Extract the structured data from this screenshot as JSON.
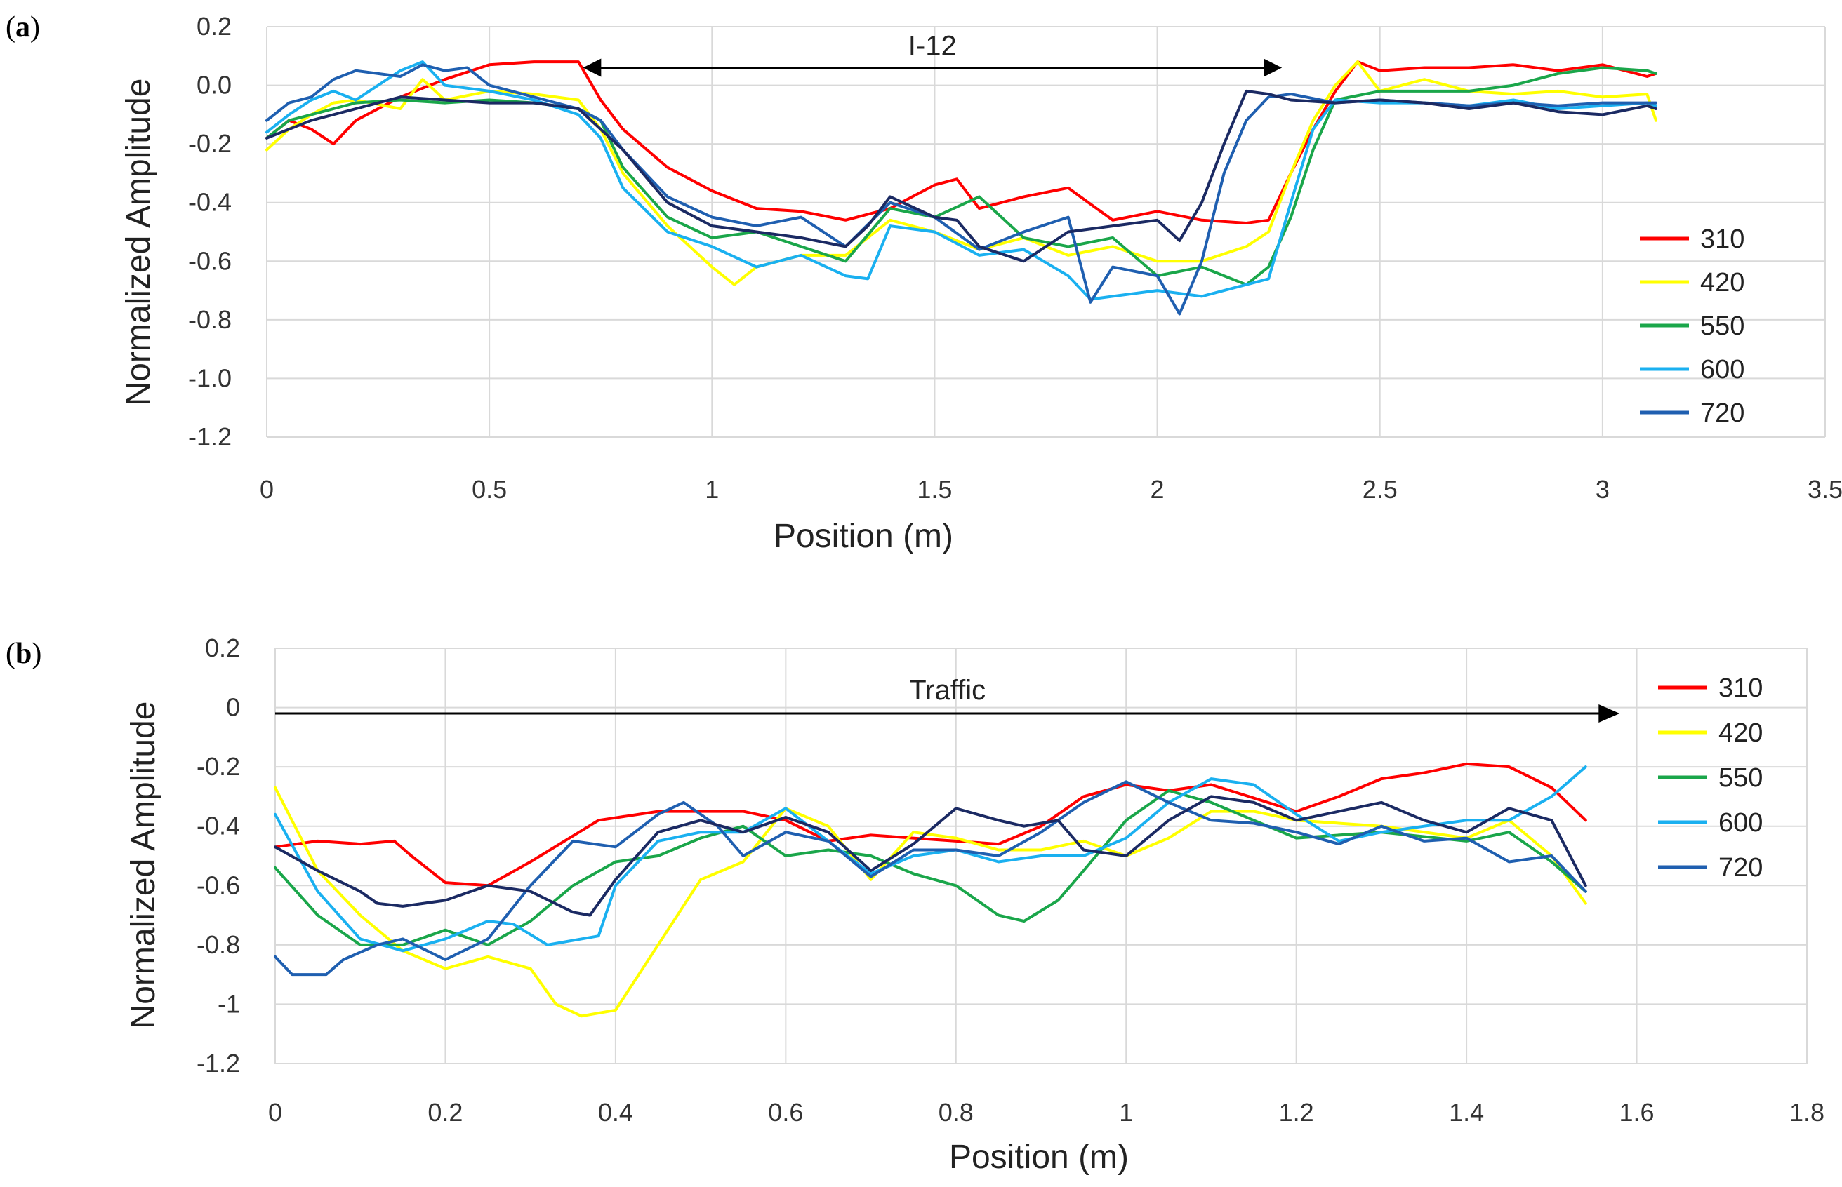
{
  "chart_data": [
    {
      "panel": "a",
      "type": "line",
      "xlabel": "Position (m)",
      "ylabel": "Normalized Amplitude",
      "xlim": [
        0,
        3.5
      ],
      "ylim": [
        -1.2,
        0.2
      ],
      "xticks": [
        0,
        0.5,
        1,
        1.5,
        2,
        2.5,
        3,
        3.5
      ],
      "xtick_labels": [
        "0",
        "0.5",
        "1",
        "1.5",
        "2",
        "2.5",
        "3",
        "3.5"
      ],
      "yticks": [
        0.2,
        0.0,
        -0.2,
        -0.4,
        -0.6,
        -0.8,
        -1.0,
        -1.2
      ],
      "ytick_labels": [
        "0.2",
        "0.0",
        "-0.2",
        "-0.4",
        "-0.6",
        "-0.8",
        "-1.0",
        "-1.2"
      ],
      "grid": true,
      "legend_position": "right",
      "annotation": {
        "text": "I-12",
        "from": 0.71,
        "to": 2.28,
        "y": 0.06,
        "style": "double-arrow"
      },
      "series": [
        {
          "name": "310",
          "color": "#ff0000",
          "x": [
            0,
            0.05,
            0.1,
            0.15,
            0.2,
            0.3,
            0.4,
            0.5,
            0.6,
            0.7,
            0.75,
            0.8,
            0.9,
            1.0,
            1.1,
            1.2,
            1.3,
            1.4,
            1.5,
            1.55,
            1.6,
            1.7,
            1.8,
            1.9,
            2.0,
            2.1,
            2.2,
            2.25,
            2.3,
            2.35,
            2.4,
            2.45,
            2.5,
            2.6,
            2.7,
            2.8,
            2.9,
            3.0,
            3.1,
            3.12
          ],
          "y": [
            -0.18,
            -0.12,
            -0.15,
            -0.2,
            -0.12,
            -0.04,
            0.02,
            0.07,
            0.08,
            0.08,
            -0.05,
            -0.15,
            -0.28,
            -0.36,
            -0.42,
            -0.43,
            -0.46,
            -0.42,
            -0.34,
            -0.32,
            -0.42,
            -0.38,
            -0.35,
            -0.46,
            -0.43,
            -0.46,
            -0.47,
            -0.46,
            -0.3,
            -0.15,
            -0.02,
            0.08,
            0.05,
            0.06,
            0.06,
            0.07,
            0.05,
            0.07,
            0.03,
            0.04
          ]
        },
        {
          "name": "420",
          "color": "#ffff00",
          "x": [
            0,
            0.05,
            0.1,
            0.15,
            0.2,
            0.3,
            0.35,
            0.4,
            0.5,
            0.6,
            0.7,
            0.75,
            0.8,
            0.9,
            1.0,
            1.05,
            1.1,
            1.2,
            1.3,
            1.4,
            1.5,
            1.6,
            1.7,
            1.8,
            1.9,
            2.0,
            2.1,
            2.2,
            2.25,
            2.3,
            2.35,
            2.4,
            2.45,
            2.5,
            2.6,
            2.7,
            2.8,
            2.9,
            3.0,
            3.1,
            3.12
          ],
          "y": [
            -0.22,
            -0.15,
            -0.1,
            -0.06,
            -0.05,
            -0.08,
            0.02,
            -0.05,
            -0.02,
            -0.03,
            -0.05,
            -0.15,
            -0.3,
            -0.48,
            -0.62,
            -0.68,
            -0.62,
            -0.58,
            -0.58,
            -0.46,
            -0.5,
            -0.56,
            -0.52,
            -0.58,
            -0.55,
            -0.6,
            -0.6,
            -0.55,
            -0.5,
            -0.3,
            -0.12,
            0.0,
            0.08,
            -0.02,
            0.02,
            -0.02,
            -0.03,
            -0.02,
            -0.04,
            -0.03,
            -0.12
          ]
        },
        {
          "name": "550",
          "color": "#1aa64a",
          "x": [
            0,
            0.05,
            0.1,
            0.15,
            0.2,
            0.3,
            0.4,
            0.5,
            0.6,
            0.7,
            0.75,
            0.8,
            0.9,
            1.0,
            1.1,
            1.2,
            1.3,
            1.4,
            1.5,
            1.6,
            1.7,
            1.8,
            1.9,
            2.0,
            2.1,
            2.2,
            2.25,
            2.3,
            2.35,
            2.4,
            2.5,
            2.6,
            2.7,
            2.8,
            2.9,
            3.0,
            3.1,
            3.12
          ],
          "y": [
            -0.18,
            -0.12,
            -0.1,
            -0.08,
            -0.06,
            -0.05,
            -0.06,
            -0.05,
            -0.06,
            -0.08,
            -0.12,
            -0.28,
            -0.45,
            -0.52,
            -0.5,
            -0.55,
            -0.6,
            -0.42,
            -0.45,
            -0.38,
            -0.52,
            -0.55,
            -0.52,
            -0.65,
            -0.62,
            -0.68,
            -0.62,
            -0.45,
            -0.22,
            -0.05,
            -0.02,
            -0.02,
            -0.02,
            0.0,
            0.04,
            0.06,
            0.05,
            0.04
          ]
        },
        {
          "name": "600",
          "color": "#1ab0f0",
          "x": [
            0,
            0.05,
            0.1,
            0.15,
            0.2,
            0.3,
            0.35,
            0.4,
            0.5,
            0.6,
            0.7,
            0.75,
            0.8,
            0.9,
            1.0,
            1.1,
            1.2,
            1.3,
            1.35,
            1.4,
            1.5,
            1.6,
            1.7,
            1.8,
            1.85,
            1.9,
            2.0,
            2.1,
            2.2,
            2.25,
            2.3,
            2.35,
            2.4,
            2.5,
            2.6,
            2.7,
            2.8,
            2.9,
            3.0,
            3.1,
            3.12
          ],
          "y": [
            -0.16,
            -0.1,
            -0.05,
            -0.02,
            -0.05,
            0.05,
            0.08,
            0.0,
            -0.02,
            -0.05,
            -0.1,
            -0.18,
            -0.35,
            -0.5,
            -0.55,
            -0.62,
            -0.58,
            -0.65,
            -0.66,
            -0.48,
            -0.5,
            -0.58,
            -0.56,
            -0.65,
            -0.73,
            -0.72,
            -0.7,
            -0.72,
            -0.68,
            -0.66,
            -0.4,
            -0.15,
            -0.05,
            -0.06,
            -0.06,
            -0.07,
            -0.05,
            -0.08,
            -0.07,
            -0.06,
            -0.07
          ]
        },
        {
          "name": "720",
          "color": "#1f5fb0",
          "x": [
            0,
            0.05,
            0.1,
            0.15,
            0.2,
            0.3,
            0.35,
            0.4,
            0.45,
            0.5,
            0.6,
            0.7,
            0.75,
            0.8,
            0.9,
            1.0,
            1.1,
            1.2,
            1.3,
            1.4,
            1.5,
            1.6,
            1.7,
            1.8,
            1.85,
            1.9,
            2.0,
            2.05,
            2.1,
            2.15,
            2.2,
            2.25,
            2.3,
            2.4,
            2.5,
            2.6,
            2.7,
            2.8,
            2.9,
            3.0,
            3.1,
            3.12
          ],
          "y": [
            -0.12,
            -0.06,
            -0.04,
            0.02,
            0.05,
            0.03,
            0.07,
            0.05,
            0.06,
            0.0,
            -0.04,
            -0.08,
            -0.12,
            -0.22,
            -0.38,
            -0.45,
            -0.48,
            -0.45,
            -0.55,
            -0.4,
            -0.45,
            -0.56,
            -0.5,
            -0.45,
            -0.74,
            -0.62,
            -0.65,
            -0.78,
            -0.6,
            -0.3,
            -0.12,
            -0.04,
            -0.03,
            -0.06,
            -0.05,
            -0.06,
            -0.07,
            -0.06,
            -0.07,
            -0.06,
            -0.06,
            -0.06
          ]
        },
        {
          "name": "",
          "color": "#1b2a63",
          "x": [
            0,
            0.1,
            0.2,
            0.3,
            0.4,
            0.5,
            0.6,
            0.7,
            0.8,
            0.9,
            1.0,
            1.1,
            1.2,
            1.3,
            1.35,
            1.4,
            1.5,
            1.55,
            1.6,
            1.7,
            1.8,
            1.9,
            2.0,
            2.05,
            2.1,
            2.15,
            2.2,
            2.25,
            2.3,
            2.4,
            2.5,
            2.6,
            2.7,
            2.8,
            2.9,
            3.0,
            3.1,
            3.12
          ],
          "y": [
            -0.18,
            -0.12,
            -0.08,
            -0.04,
            -0.05,
            -0.06,
            -0.06,
            -0.08,
            -0.22,
            -0.4,
            -0.48,
            -0.5,
            -0.52,
            -0.55,
            -0.48,
            -0.38,
            -0.45,
            -0.46,
            -0.55,
            -0.6,
            -0.5,
            -0.48,
            -0.46,
            -0.53,
            -0.4,
            -0.2,
            -0.02,
            -0.03,
            -0.05,
            -0.06,
            -0.05,
            -0.06,
            -0.08,
            -0.06,
            -0.09,
            -0.1,
            -0.07,
            -0.08
          ]
        }
      ]
    },
    {
      "panel": "b",
      "type": "line",
      "xlabel": "Position (m)",
      "ylabel": "Normalized Amplitude",
      "xlim": [
        0,
        1.8
      ],
      "ylim": [
        -1.2,
        0.2
      ],
      "xticks": [
        0,
        0.2,
        0.4,
        0.6,
        0.8,
        1,
        1.2,
        1.4,
        1.6,
        1.8
      ],
      "xtick_labels": [
        "0",
        "0.2",
        "0.4",
        "0.6",
        "0.8",
        "1",
        "1.2",
        "1.4",
        "1.6",
        "1.8"
      ],
      "yticks": [
        0.2,
        0,
        -0.2,
        -0.4,
        -0.6,
        -0.8,
        -1,
        -1.2
      ],
      "ytick_labels": [
        "0.2",
        "0",
        "-0.2",
        "-0.4",
        "-0.6",
        "-0.8",
        "-1",
        "-1.2"
      ],
      "grid": true,
      "legend_position": "right",
      "annotation": {
        "text": "Traffic",
        "from": 0.0,
        "to": 1.58,
        "y": -0.02,
        "style": "single-arrow"
      },
      "series": [
        {
          "name": "310",
          "color": "#ff0000",
          "x": [
            0,
            0.05,
            0.1,
            0.14,
            0.16,
            0.2,
            0.25,
            0.3,
            0.38,
            0.45,
            0.55,
            0.6,
            0.65,
            0.7,
            0.8,
            0.85,
            0.9,
            0.95,
            1.0,
            1.05,
            1.1,
            1.2,
            1.25,
            1.3,
            1.35,
            1.4,
            1.45,
            1.5,
            1.54
          ],
          "y": [
            -0.47,
            -0.45,
            -0.46,
            -0.45,
            -0.5,
            -0.59,
            -0.6,
            -0.52,
            -0.38,
            -0.35,
            -0.35,
            -0.38,
            -0.45,
            -0.43,
            -0.45,
            -0.46,
            -0.4,
            -0.3,
            -0.26,
            -0.28,
            -0.26,
            -0.35,
            -0.3,
            -0.24,
            -0.22,
            -0.19,
            -0.2,
            -0.27,
            -0.38
          ]
        },
        {
          "name": "420",
          "color": "#ffff00",
          "x": [
            0,
            0.05,
            0.1,
            0.15,
            0.2,
            0.25,
            0.3,
            0.33,
            0.36,
            0.4,
            0.45,
            0.5,
            0.55,
            0.6,
            0.65,
            0.7,
            0.75,
            0.8,
            0.85,
            0.9,
            0.95,
            1.0,
            1.05,
            1.1,
            1.15,
            1.2,
            1.3,
            1.4,
            1.45,
            1.5,
            1.54
          ],
          "y": [
            -0.27,
            -0.55,
            -0.7,
            -0.82,
            -0.88,
            -0.84,
            -0.88,
            -1.0,
            -1.04,
            -1.02,
            -0.8,
            -0.58,
            -0.52,
            -0.34,
            -0.4,
            -0.58,
            -0.42,
            -0.44,
            -0.48,
            -0.48,
            -0.45,
            -0.5,
            -0.44,
            -0.35,
            -0.35,
            -0.38,
            -0.4,
            -0.44,
            -0.38,
            -0.5,
            -0.66
          ]
        },
        {
          "name": "550",
          "color": "#1aa64a",
          "x": [
            0,
            0.05,
            0.1,
            0.15,
            0.2,
            0.25,
            0.3,
            0.35,
            0.4,
            0.45,
            0.5,
            0.55,
            0.6,
            0.65,
            0.7,
            0.75,
            0.8,
            0.85,
            0.88,
            0.92,
            0.95,
            1.0,
            1.05,
            1.1,
            1.15,
            1.2,
            1.3,
            1.4,
            1.45,
            1.5,
            1.54
          ],
          "y": [
            -0.54,
            -0.7,
            -0.8,
            -0.8,
            -0.75,
            -0.8,
            -0.72,
            -0.6,
            -0.52,
            -0.5,
            -0.44,
            -0.4,
            -0.5,
            -0.48,
            -0.5,
            -0.56,
            -0.6,
            -0.7,
            -0.72,
            -0.65,
            -0.55,
            -0.38,
            -0.28,
            -0.32,
            -0.38,
            -0.44,
            -0.42,
            -0.45,
            -0.42,
            -0.52,
            -0.62
          ]
        },
        {
          "name": "600",
          "color": "#1ab0f0",
          "x": [
            0,
            0.05,
            0.1,
            0.15,
            0.2,
            0.25,
            0.28,
            0.32,
            0.38,
            0.4,
            0.45,
            0.5,
            0.55,
            0.6,
            0.65,
            0.7,
            0.75,
            0.8,
            0.85,
            0.9,
            0.95,
            1.0,
            1.05,
            1.1,
            1.15,
            1.2,
            1.25,
            1.3,
            1.35,
            1.4,
            1.45,
            1.5,
            1.54
          ],
          "y": [
            -0.36,
            -0.62,
            -0.78,
            -0.82,
            -0.78,
            -0.72,
            -0.73,
            -0.8,
            -0.77,
            -0.6,
            -0.45,
            -0.42,
            -0.42,
            -0.34,
            -0.45,
            -0.56,
            -0.5,
            -0.48,
            -0.52,
            -0.5,
            -0.5,
            -0.44,
            -0.32,
            -0.24,
            -0.26,
            -0.36,
            -0.45,
            -0.42,
            -0.4,
            -0.38,
            -0.38,
            -0.3,
            -0.2
          ]
        },
        {
          "name": "720",
          "color": "#1f5fb0",
          "x": [
            0,
            0.02,
            0.06,
            0.08,
            0.12,
            0.15,
            0.2,
            0.25,
            0.3,
            0.35,
            0.4,
            0.45,
            0.48,
            0.52,
            0.55,
            0.6,
            0.65,
            0.7,
            0.75,
            0.8,
            0.85,
            0.9,
            0.95,
            1.0,
            1.05,
            1.1,
            1.15,
            1.2,
            1.25,
            1.3,
            1.35,
            1.4,
            1.45,
            1.5,
            1.54
          ],
          "y": [
            -0.84,
            -0.9,
            -0.9,
            -0.85,
            -0.8,
            -0.78,
            -0.85,
            -0.78,
            -0.6,
            -0.45,
            -0.47,
            -0.36,
            -0.32,
            -0.4,
            -0.5,
            -0.42,
            -0.45,
            -0.57,
            -0.48,
            -0.48,
            -0.5,
            -0.42,
            -0.32,
            -0.25,
            -0.32,
            -0.38,
            -0.39,
            -0.42,
            -0.46,
            -0.4,
            -0.45,
            -0.44,
            -0.52,
            -0.5,
            -0.62
          ]
        },
        {
          "name": "",
          "color": "#1b2a63",
          "x": [
            0,
            0.05,
            0.1,
            0.12,
            0.15,
            0.2,
            0.25,
            0.3,
            0.35,
            0.37,
            0.4,
            0.45,
            0.5,
            0.55,
            0.6,
            0.65,
            0.7,
            0.75,
            0.8,
            0.85,
            0.88,
            0.92,
            0.95,
            1.0,
            1.05,
            1.1,
            1.15,
            1.2,
            1.25,
            1.3,
            1.35,
            1.4,
            1.45,
            1.5,
            1.54
          ],
          "y": [
            -0.47,
            -0.55,
            -0.62,
            -0.66,
            -0.67,
            -0.65,
            -0.6,
            -0.62,
            -0.69,
            -0.7,
            -0.58,
            -0.42,
            -0.38,
            -0.42,
            -0.37,
            -0.42,
            -0.55,
            -0.46,
            -0.34,
            -0.38,
            -0.4,
            -0.38,
            -0.48,
            -0.5,
            -0.38,
            -0.3,
            -0.32,
            -0.38,
            -0.35,
            -0.32,
            -0.38,
            -0.42,
            -0.34,
            -0.38,
            -0.6
          ]
        }
      ]
    }
  ],
  "panels": [
    {
      "label_open": "(",
      "label_letter": "a",
      "label_close": ")"
    },
    {
      "label_open": "(",
      "label_letter": "b",
      "label_close": ")"
    }
  ]
}
